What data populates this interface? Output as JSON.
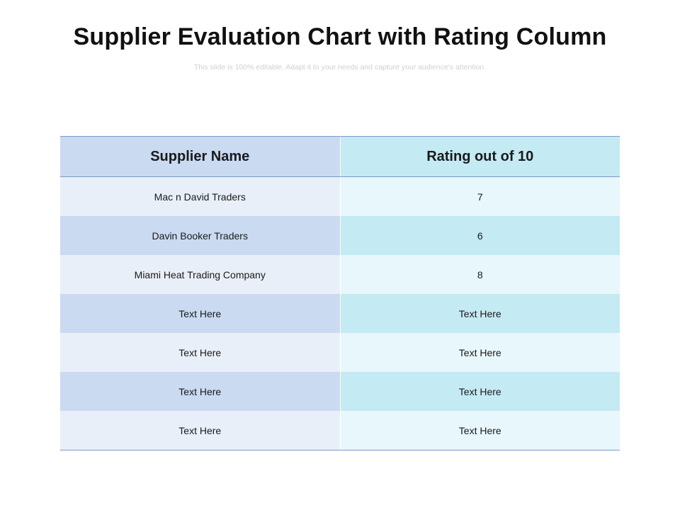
{
  "slide": {
    "title": "Supplier Evaluation Chart with Rating Column",
    "subtitle": "This slide is 100% editable. Adapt it to your needs and capture your audience's attention."
  },
  "table": {
    "headers": [
      "Supplier Name",
      "Rating out of 10"
    ],
    "rows": [
      [
        "Mac n David Traders",
        "7"
      ],
      [
        "Davin Booker Traders",
        "6"
      ],
      [
        "Miami Heat Trading Company",
        "8"
      ],
      [
        "Text Here",
        "Text Here"
      ],
      [
        "Text Here",
        "Text Here"
      ],
      [
        "Text Here",
        "Text Here"
      ],
      [
        "Text Here",
        "Text Here"
      ]
    ]
  },
  "colors": {
    "header_left": "#c9daf1",
    "header_right": "#c4eaf3",
    "row_light_left": "#e9eff9",
    "row_light_right": "#e7f7fb",
    "border": "#7a9bc8"
  }
}
